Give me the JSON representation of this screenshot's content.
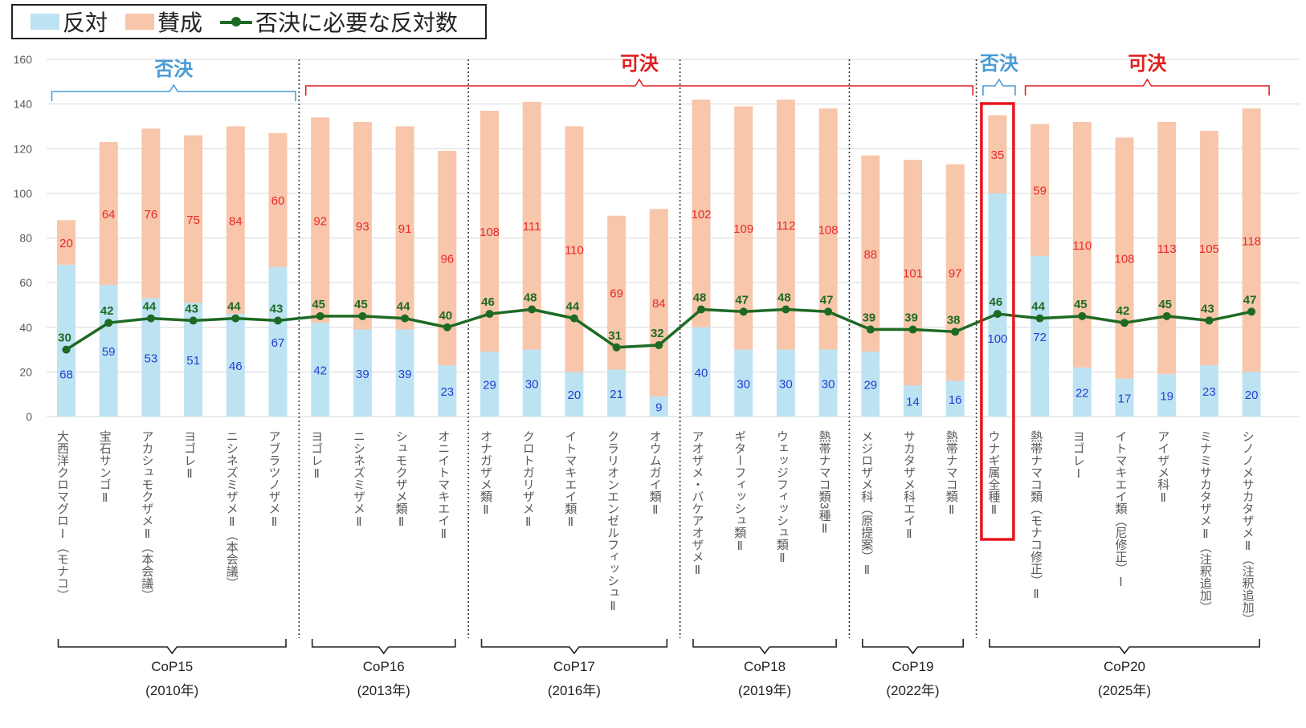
{
  "legend": {
    "against": "反対",
    "favor": "賛成",
    "threshold": "否決に必要な反対数"
  },
  "colors": {
    "against": "#bde3f3",
    "favor": "#f7c6ab",
    "threshold_line": "#1e6a23",
    "against_label": "#1f3fd0",
    "favor_label": "#e82a2a",
    "rejected_text": "#4a9bd6",
    "adopted_text": "#e02020",
    "highlight_box": "#e8141c"
  },
  "chart_data": {
    "type": "bar",
    "stacked": true,
    "ylim": [
      0,
      160
    ],
    "yticks": [
      0,
      20,
      40,
      60,
      80,
      100,
      120,
      140,
      160
    ],
    "categories": [
      "大西洋クロマグロⅠ（モナコ）",
      "宝石サンゴⅡ",
      "アカシュモクザメⅡ（本会議）",
      "ヨゴレⅡ",
      "ニシネズミザメⅡ（本会議）",
      "アブラツノザメⅡ",
      "ヨゴレⅡ",
      "ニシネズミザメⅡ",
      "シュモクザメ類Ⅱ",
      "オニイトマキエイⅡ",
      "オナガザメ類Ⅱ",
      "クロトガリザメⅡ",
      "イトマキエイ類Ⅱ",
      "クラリオンエンゼルフィッシュⅡ",
      "オウムガイ類Ⅱ",
      "アオザメ・バケアオザメⅡ",
      "ギターフィッシュ類Ⅱ",
      "ウェッジフィッシュ類Ⅱ",
      "熱帯ナマコ類3種Ⅱ",
      "メジロザメ科（原提案）Ⅱ",
      "サカタザメ科エイⅡ",
      "熱帯ナマコ類Ⅱ",
      "ウナギ属全種Ⅱ",
      "熱帯ナマコ類（モナコ修正）Ⅱ",
      "ヨゴレⅠ",
      "イトマキエイ類（尼修正）Ⅰ",
      "アイザメ科Ⅱ",
      "ミナミサカタザメⅡ（注釈追加）",
      "シノノメサカタザメⅡ（注釈追加）"
    ],
    "series": [
      {
        "name": "反対",
        "values": [
          68,
          59,
          53,
          51,
          46,
          67,
          42,
          39,
          39,
          23,
          29,
          30,
          20,
          21,
          9,
          40,
          30,
          30,
          30,
          29,
          14,
          16,
          100,
          72,
          22,
          17,
          19,
          23,
          20
        ]
      },
      {
        "name": "賛成",
        "values": [
          20,
          64,
          76,
          75,
          84,
          60,
          92,
          93,
          91,
          96,
          108,
          111,
          110,
          69,
          84,
          102,
          109,
          112,
          108,
          88,
          101,
          97,
          35,
          59,
          110,
          108,
          113,
          105,
          118
        ]
      },
      {
        "name": "否決に必要な反対数",
        "type": "line",
        "values": [
          30,
          42,
          44,
          43,
          44,
          43,
          45,
          45,
          44,
          40,
          46,
          48,
          44,
          31,
          32,
          48,
          47,
          48,
          47,
          39,
          39,
          38,
          46,
          44,
          45,
          42,
          45,
          43,
          47
        ]
      }
    ],
    "groups": [
      {
        "name": "CoP15",
        "year": "(2010年)",
        "start": 0,
        "end": 5
      },
      {
        "name": "CoP16",
        "year": "(2013年)",
        "start": 6,
        "end": 9
      },
      {
        "name": "CoP17",
        "year": "(2016年)",
        "start": 10,
        "end": 14
      },
      {
        "name": "CoP18",
        "year": "(2019年)",
        "start": 15,
        "end": 18
      },
      {
        "name": "CoP19",
        "year": "(2022年)",
        "start": 19,
        "end": 21
      },
      {
        "name": "CoP20",
        "year": "(2025年)",
        "start": 22,
        "end": 28
      }
    ],
    "outcomes": [
      {
        "label": "否決",
        "kind": "rejected",
        "start": 0,
        "end": 5
      },
      {
        "label": "可決",
        "kind": "adopted",
        "start": 6,
        "end": 21
      },
      {
        "label": "否決",
        "kind": "rejected",
        "start": 22,
        "end": 22
      },
      {
        "label": "可決",
        "kind": "adopted",
        "start": 23,
        "end": 28
      }
    ],
    "highlight_index": 22,
    "grid": true,
    "legend_position": "top-left"
  }
}
